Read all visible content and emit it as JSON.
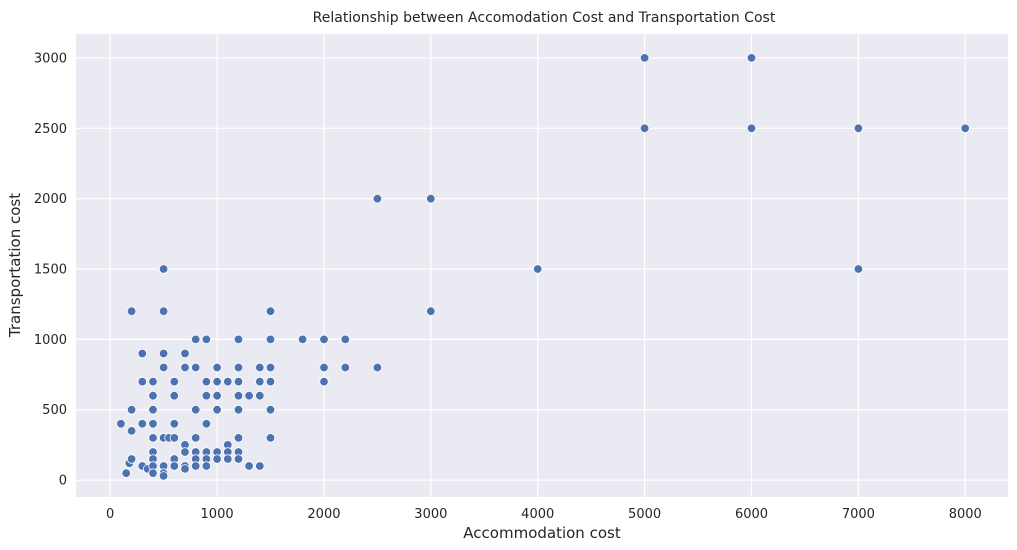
{
  "chart_data": {
    "type": "scatter",
    "title": "Relationship between Accomodation Cost and Transportation Cost",
    "xlabel": "Accommodation cost",
    "ylabel": "Transportation cost",
    "xlim": [
      -320,
      8400
    ],
    "ylim": [
      -120,
      3170
    ],
    "xticks": [
      0,
      1000,
      2000,
      3000,
      4000,
      5000,
      6000,
      7000,
      8000
    ],
    "yticks": [
      0,
      500,
      1000,
      1500,
      2000,
      2500,
      3000
    ],
    "grid": true,
    "background": "#eaeaf2",
    "point_color": "#4c72b0",
    "points": [
      [
        100,
        400
      ],
      [
        150,
        50
      ],
      [
        180,
        120
      ],
      [
        200,
        1200
      ],
      [
        200,
        500
      ],
      [
        200,
        350
      ],
      [
        200,
        150
      ],
      [
        300,
        900
      ],
      [
        300,
        700
      ],
      [
        300,
        400
      ],
      [
        300,
        100
      ],
      [
        350,
        80
      ],
      [
        400,
        700
      ],
      [
        400,
        600
      ],
      [
        400,
        500
      ],
      [
        400,
        400
      ],
      [
        400,
        300
      ],
      [
        400,
        200
      ],
      [
        400,
        150
      ],
      [
        400,
        100
      ],
      [
        400,
        50
      ],
      [
        500,
        1500
      ],
      [
        500,
        1200
      ],
      [
        500,
        900
      ],
      [
        500,
        800
      ],
      [
        500,
        300
      ],
      [
        500,
        100
      ],
      [
        500,
        50
      ],
      [
        500,
        30
      ],
      [
        550,
        300
      ],
      [
        600,
        700
      ],
      [
        600,
        600
      ],
      [
        600,
        400
      ],
      [
        600,
        300
      ],
      [
        600,
        150
      ],
      [
        600,
        100
      ],
      [
        700,
        900
      ],
      [
        700,
        800
      ],
      [
        700,
        250
      ],
      [
        700,
        200
      ],
      [
        700,
        100
      ],
      [
        700,
        80
      ],
      [
        800,
        1000
      ],
      [
        800,
        800
      ],
      [
        800,
        500
      ],
      [
        800,
        300
      ],
      [
        800,
        200
      ],
      [
        800,
        150
      ],
      [
        800,
        100
      ],
      [
        900,
        1000
      ],
      [
        900,
        700
      ],
      [
        900,
        600
      ],
      [
        900,
        400
      ],
      [
        900,
        200
      ],
      [
        900,
        150
      ],
      [
        900,
        100
      ],
      [
        1000,
        800
      ],
      [
        1000,
        700
      ],
      [
        1000,
        600
      ],
      [
        1000,
        500
      ],
      [
        1000,
        200
      ],
      [
        1000,
        150
      ],
      [
        1100,
        700
      ],
      [
        1100,
        250
      ],
      [
        1100,
        200
      ],
      [
        1100,
        150
      ],
      [
        1200,
        1000
      ],
      [
        1200,
        800
      ],
      [
        1200,
        700
      ],
      [
        1200,
        600
      ],
      [
        1200,
        500
      ],
      [
        1200,
        300
      ],
      [
        1200,
        200
      ],
      [
        1200,
        150
      ],
      [
        1300,
        600
      ],
      [
        1300,
        100
      ],
      [
        1400,
        800
      ],
      [
        1400,
        700
      ],
      [
        1400,
        600
      ],
      [
        1400,
        100
      ],
      [
        1500,
        1200
      ],
      [
        1500,
        1000
      ],
      [
        1500,
        800
      ],
      [
        1500,
        700
      ],
      [
        1500,
        500
      ],
      [
        1500,
        300
      ],
      [
        1800,
        1000
      ],
      [
        2000,
        1000
      ],
      [
        2000,
        800
      ],
      [
        2000,
        700
      ],
      [
        2200,
        1000
      ],
      [
        2200,
        800
      ],
      [
        2500,
        2000
      ],
      [
        2500,
        800
      ],
      [
        3000,
        2000
      ],
      [
        3000,
        1200
      ],
      [
        4000,
        1500
      ],
      [
        5000,
        3000
      ],
      [
        5000,
        2500
      ],
      [
        6000,
        3000
      ],
      [
        6000,
        2500
      ],
      [
        7000,
        2500
      ],
      [
        7000,
        1500
      ],
      [
        8000,
        2500
      ]
    ]
  }
}
